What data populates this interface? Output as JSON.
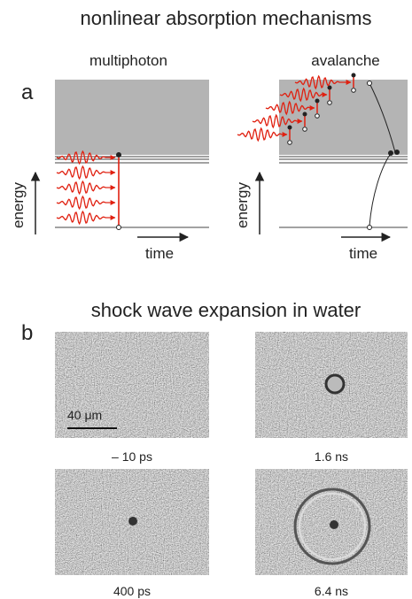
{
  "panel_a": {
    "label": "a",
    "title": "nonlinear absorption mechanisms",
    "diagrams": [
      {
        "title": "multiphoton",
        "y_label": "energy",
        "x_label": "time"
      },
      {
        "title": "avalanche",
        "y_label": "energy",
        "x_label": "time"
      }
    ]
  },
  "panel_b": {
    "label": "b",
    "title": "shock wave expansion in water",
    "scale_bar": "40 μm",
    "frames": [
      {
        "caption": "– 10 ps"
      },
      {
        "caption": "1.6 ns"
      },
      {
        "caption": "400 ps"
      },
      {
        "caption": "6.4 ns"
      }
    ]
  }
}
